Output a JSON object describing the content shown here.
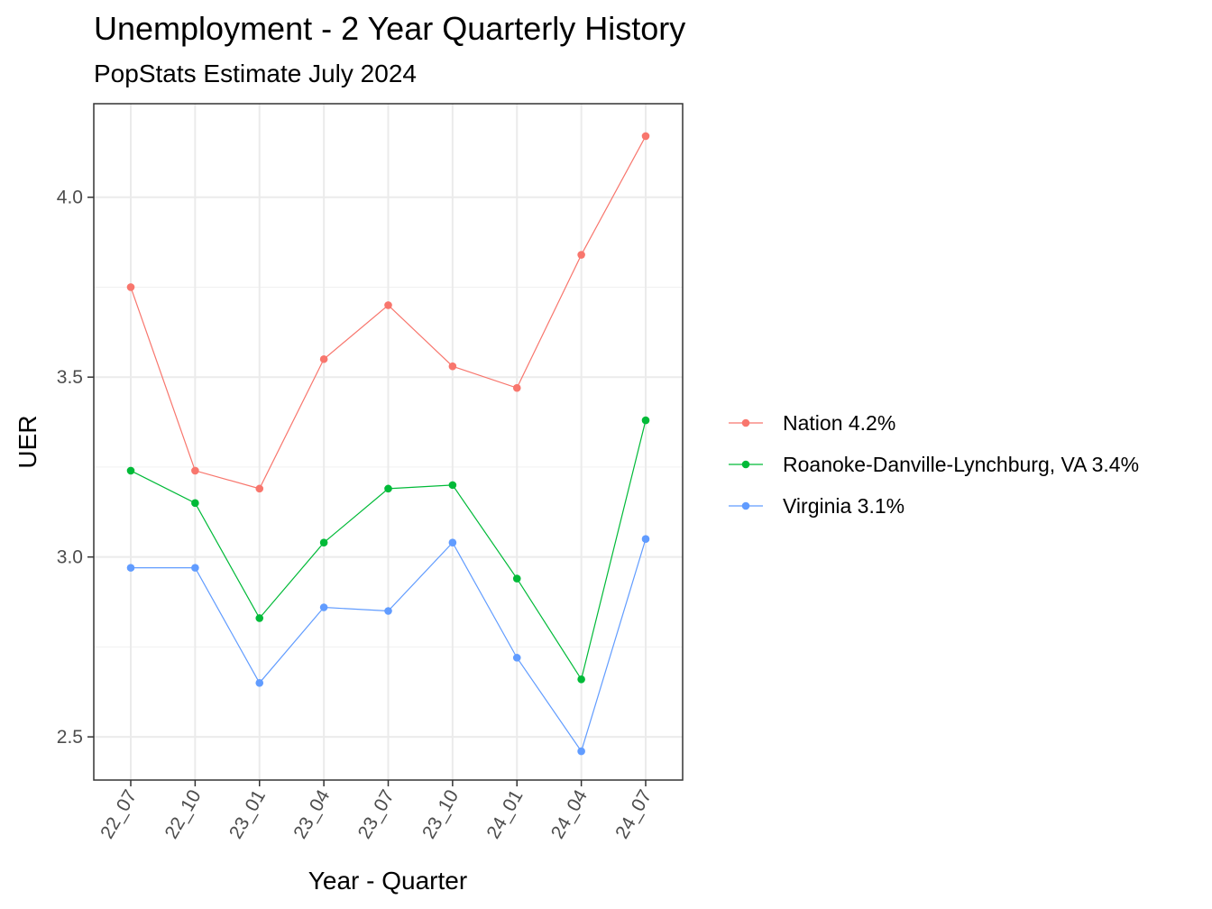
{
  "chart_data": {
    "type": "line",
    "title": "Unemployment - 2 Year Quarterly History",
    "subtitle": "PopStats Estimate July 2024",
    "xlabel": "Year - Quarter",
    "ylabel": "UER",
    "categories": [
      "22_07",
      "22_10",
      "23_01",
      "23_04",
      "23_07",
      "23_10",
      "24_01",
      "24_04",
      "24_07"
    ],
    "ylim": [
      2.38,
      4.26
    ],
    "yticks": [
      2.5,
      3.0,
      3.5,
      4.0
    ],
    "ytick_labels": [
      "2.5",
      "3.0",
      "3.5",
      "4.0"
    ],
    "grid": true,
    "legend_position": "right",
    "series": [
      {
        "name": "Nation 4.2%",
        "color": "#F8766D",
        "values": [
          3.75,
          3.24,
          3.19,
          3.55,
          3.7,
          3.53,
          3.47,
          3.84,
          4.17
        ]
      },
      {
        "name": "Roanoke-Danville-Lynchburg, VA 3.4%",
        "color": "#00BA38",
        "values": [
          3.24,
          3.15,
          2.83,
          3.04,
          3.19,
          3.2,
          2.94,
          2.66,
          3.38
        ]
      },
      {
        "name": "Virginia 3.1%",
        "color": "#619CFF",
        "values": [
          2.97,
          2.97,
          2.65,
          2.86,
          2.85,
          3.04,
          2.72,
          2.46,
          3.05
        ]
      }
    ]
  }
}
